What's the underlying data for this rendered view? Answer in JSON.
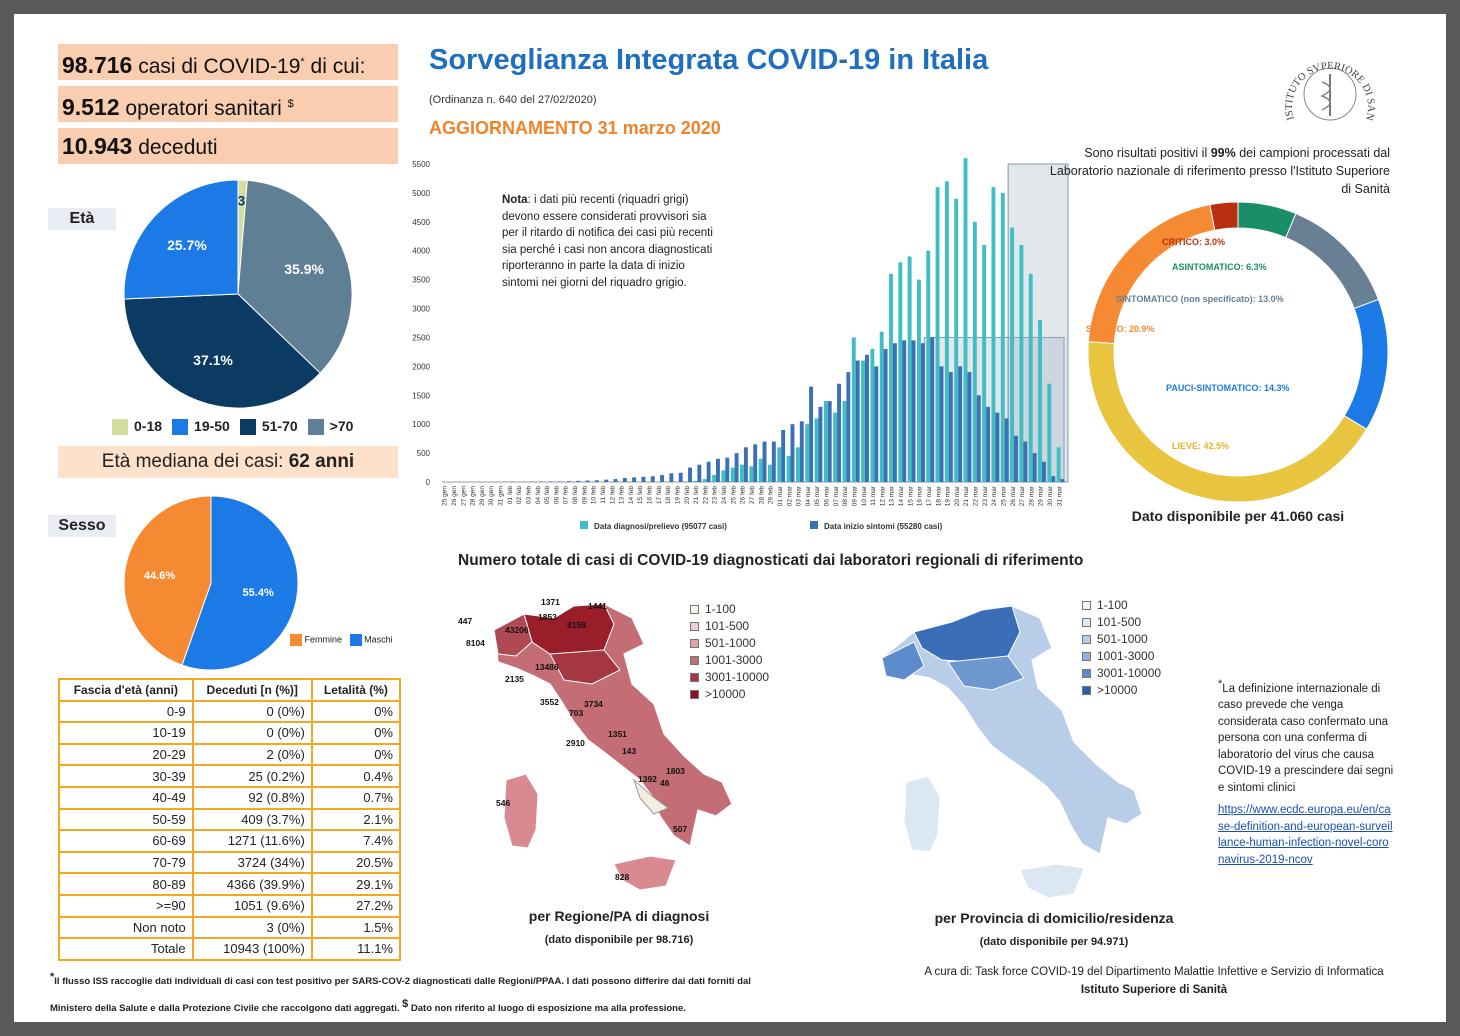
{
  "header": {
    "title": "Sorveglianza Integrata COVID-19 in Italia",
    "ordinance": "(Ordinanza n. 640 del 27/02/2020)",
    "update": "AGGIORNAMENTO 31 marzo 2020"
  },
  "stats": {
    "cases_num": "98.716",
    "cases_text": "casi di COVID-19",
    "cases_tail": "di cui:",
    "health_num": "9.512",
    "health_text": "operatori sanitari",
    "health_sup": "$",
    "deaths_num": "10.943",
    "deaths_text": "deceduti",
    "asterisk": "*"
  },
  "age": {
    "label": "Età",
    "median_text": "Età mediana dei casi:",
    "median_value": "62 anni",
    "slices": [
      {
        "name": "0-18",
        "value": 1.3,
        "label": "1.3%",
        "color": "#d6dba0"
      },
      {
        "name": ">70",
        "value": 35.9,
        "label": "35.9%",
        "color": "#5f7f95"
      },
      {
        "name": "51-70",
        "value": 37.1,
        "label": "37.1%",
        "color": "#0b3a63"
      },
      {
        "name": "19-50",
        "value": 25.7,
        "label": "25.7%",
        "color": "#1b7ae6"
      }
    ]
  },
  "sex": {
    "label": "Sesso",
    "slices": [
      {
        "name": "Maschi",
        "value": 55.4,
        "label": "55.4%",
        "color": "#1b7ae6"
      },
      {
        "name": "Femmine",
        "value": 44.6,
        "label": "44.6%",
        "color": "#f58a32"
      }
    ]
  },
  "mortality_table": {
    "headers": [
      "Fascia d'età (anni)",
      "Deceduti [n (%)]",
      "Letalità (%)"
    ],
    "rows": [
      [
        "0-9",
        "0 (0%)",
        "0%"
      ],
      [
        "10-19",
        "0 (0%)",
        "0%"
      ],
      [
        "20-29",
        "2 (0%)",
        "0%"
      ],
      [
        "30-39",
        "25 (0.2%)",
        "0.4%"
      ],
      [
        "40-49",
        "92 (0.8%)",
        "0.7%"
      ],
      [
        "50-59",
        "409 (3.7%)",
        "2.1%"
      ],
      [
        "60-69",
        "1271 (11.6%)",
        "7.4%"
      ],
      [
        "70-79",
        "3724 (34%)",
        "20.5%"
      ],
      [
        "80-89",
        "4366 (39.9%)",
        "29.1%"
      ],
      [
        ">=90",
        "1051 (9.6%)",
        "27.2%"
      ],
      [
        "Non noto",
        "3 (0%)",
        "1.5%"
      ],
      [
        "Totale",
        "10943 (100%)",
        "11.1%"
      ]
    ]
  },
  "chart_data": [
    {
      "type": "bar",
      "ylim": [
        0,
        5500
      ],
      "yticks": [
        0,
        500,
        1000,
        1500,
        2000,
        2500,
        3000,
        3500,
        4000,
        4500,
        5000,
        5500
      ],
      "categories": [
        "25 gen",
        "26 gen",
        "27 gen",
        "28 gen",
        "29 gen",
        "30 gen",
        "31 gen",
        "01 feb",
        "02 feb",
        "03 feb",
        "04 feb",
        "05 feb",
        "06 feb",
        "07 feb",
        "08 feb",
        "09 feb",
        "10 feb",
        "11 feb",
        "12 feb",
        "13 feb",
        "14 feb",
        "15 feb",
        "16 feb",
        "17 feb",
        "18 feb",
        "19 feb",
        "20 feb",
        "21 feb",
        "22 feb",
        "23 feb",
        "24 feb",
        "25 feb",
        "26 feb",
        "27 feb",
        "28 feb",
        "29 feb",
        "01 mar",
        "02 mar",
        "03 mar",
        "04 mar",
        "05 mar",
        "06 mar",
        "07 mar",
        "08 mar",
        "09 mar",
        "10 mar",
        "11 mar",
        "12 mar",
        "13 mar",
        "14 mar",
        "15 mar",
        "16 mar",
        "17 mar",
        "18 mar",
        "19 mar",
        "20 mar",
        "21 mar",
        "22 mar",
        "23 mar",
        "24 mar",
        "25 mar",
        "26 mar",
        "27 mar",
        "28 mar",
        "29 mar",
        "30 mar",
        "31 mar"
      ],
      "series": [
        {
          "name": "Data diagnosi/prelievo (95077 casi)",
          "color": "#3fbfc3",
          "values": [
            0,
            0,
            0,
            0,
            0,
            0,
            0,
            0,
            0,
            0,
            0,
            0,
            0,
            0,
            0,
            0,
            0,
            0,
            0,
            0,
            0,
            0,
            0,
            0,
            0,
            0,
            0,
            20,
            50,
            120,
            200,
            250,
            300,
            270,
            400,
            300,
            600,
            450,
            600,
            1000,
            1100,
            1400,
            1200,
            1400,
            2500,
            2100,
            2300,
            2600,
            3600,
            3800,
            3900,
            3500,
            4000,
            5100,
            5200,
            4900,
            5600,
            4500,
            4100,
            5100,
            5000,
            4400,
            4100,
            3600,
            2800,
            1700,
            600
          ]
        },
        {
          "name": "Data inizio sintomi (55280 casi)",
          "color": "#3b6fb6",
          "values": [
            0,
            0,
            0,
            0,
            0,
            0,
            5,
            5,
            5,
            5,
            8,
            10,
            10,
            15,
            20,
            25,
            30,
            40,
            50,
            70,
            80,
            90,
            100,
            120,
            150,
            160,
            250,
            300,
            350,
            400,
            420,
            500,
            600,
            650,
            700,
            700,
            900,
            1000,
            1050,
            1650,
            1300,
            1400,
            1700,
            1900,
            2100,
            2200,
            2000,
            2300,
            2400,
            2450,
            2450,
            2400,
            2500,
            2000,
            1900,
            2000,
            1900,
            1500,
            1300,
            1200,
            1100,
            800,
            700,
            500,
            350,
            100,
            50
          ]
        }
      ],
      "note_bold": "Nota",
      "note_text": ": i dati più recenti (riquadri grigi) devono essere considerati provvisori sia per il ritardo di notifica dei casi più recenti sia perché i casi non ancora diagnosticati riporteranno in parte la data di inizio sintomi nei giorni del riquadro grigio."
    },
    {
      "type": "pie",
      "title": "Dato disponibile per 41.060 casi",
      "header_pre": "Sono risultati positivi il",
      "header_pct": "99%",
      "header_post": "dei campioni processati dal Laboratorio nazionale di riferimento presso l'Istituto Superiore di Sanità",
      "slices": [
        {
          "name": "ASINTOMATICO",
          "value": 6.3,
          "color": "#1a8f66",
          "label": "ASINTOMATICO: 6.3%"
        },
        {
          "name": "SINTOMATICO (non specificato)",
          "value": 13.0,
          "color": "#687f94",
          "label": "SINTOMATICO (non specificato): 13.0%"
        },
        {
          "name": "PAUCI-SINTOMATICO",
          "value": 14.3,
          "color": "#1b7ae6",
          "label": "PAUCI-SINTOMATICO: 14.3%"
        },
        {
          "name": "LIEVE",
          "value": 42.5,
          "color": "#e8c43f",
          "label": "LIEVE: 42.5%"
        },
        {
          "name": "SEVERO",
          "value": 20.9,
          "color": "#f58a32",
          "label": "SEVERO: 20.9%"
        },
        {
          "name": "CRITICO",
          "value": 3.0,
          "color": "#b8300e",
          "label": "CRITICO: 3.0%"
        }
      ]
    }
  ],
  "maps": {
    "title": "Numero totale di casi di COVID-19 diagnosticati dai laboratori regionali di riferimento",
    "legend": [
      "1-100",
      "101-500",
      "501-1000",
      "1001-3000",
      "3001-10000",
      ">10000"
    ],
    "region_caption": "per Regione/PA di diagnosi",
    "region_sub": "(dato disponibile per 98.716)",
    "province_caption": "per Provincia di domicilio/residenza",
    "province_sub": "(dato disponibile per 94.971)",
    "region_values": [
      "1371",
      "1441",
      "447",
      "1853",
      "9158",
      "43206",
      "8104",
      "13486",
      "2135",
      "3552",
      "3734",
      "703",
      "1351",
      "2910",
      "143",
      "1803",
      "1392",
      "46",
      "546",
      "507",
      "828"
    ]
  },
  "definition": {
    "text": "La definizione internazionale di caso prevede che venga considerata caso confermato una persona con una conferma di laboratorio del virus che causa COVID-19 a prescindere dai segni e sintomi clinici",
    "link": "https://www.ecdc.europa.eu/en/case-definition-and-european-surveillance-human-infection-novel-coronavirus-2019-ncov"
  },
  "footer": {
    "note1": "Il flusso ISS raccoglie dati individuali di casi con test positivo per SARS-COV-2 diagnosticati dalle Regioni/PPAA. I dati possono differire dai dati forniti dal",
    "note2": "Ministero della Salute e dalla Protezione Civile che raccolgono dati aggregati.",
    "note3": "Dato non riferito al luogo di esposizione ma alla professione.",
    "credit": "A cura di:  Task force  COVID-19 del Dipartimento Malattie Infettive e Servizio di Informatica",
    "org": "Istituto Superiore di Sanità",
    "logo_text": "ISTITUTO SVPERIORE DI SANITÀ"
  }
}
